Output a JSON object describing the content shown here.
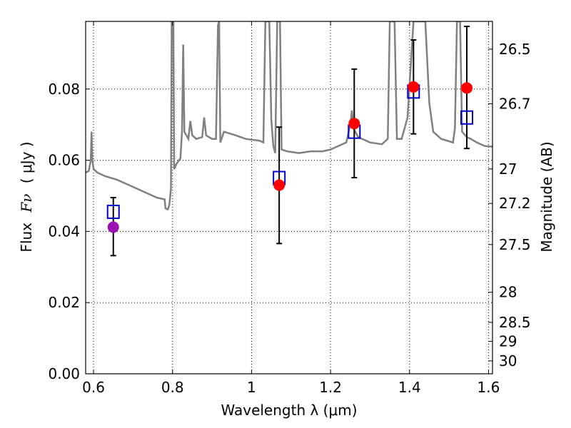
{
  "chart_data": {
    "type": "scatter",
    "xlabel": "Wavelength  λ (μm)",
    "ylabel_left_prefix": "Flux",
    "ylabel_left_symbol": "Fν",
    "ylabel_left_unit": "( μJy )",
    "ylabel_right": "Magnitude (AB)",
    "xlim": [
      0.58,
      1.61
    ],
    "ylim": [
      0.0,
      0.099
    ],
    "grid": true,
    "x_ticks": [
      {
        "value": 0.6,
        "label": "0.6"
      },
      {
        "value": 0.8,
        "label": "0.8"
      },
      {
        "value": 1.0,
        "label": "1"
      },
      {
        "value": 1.2,
        "label": "1.2"
      },
      {
        "value": 1.4,
        "label": "1.4"
      },
      {
        "value": 1.6,
        "label": "1.6"
      }
    ],
    "y_ticks": [
      {
        "value": 0.0,
        "label": "0.00"
      },
      {
        "value": 0.02,
        "label": "0.02"
      },
      {
        "value": 0.04,
        "label": "0.04"
      },
      {
        "value": 0.06,
        "label": "0.06"
      },
      {
        "value": 0.08,
        "label": "0.08"
      }
    ],
    "right_ticks": [
      {
        "mag": 26.5,
        "label": "26.5"
      },
      {
        "mag": 26.7,
        "label": "26.7"
      },
      {
        "mag": 27.0,
        "label": "27"
      },
      {
        "mag": 27.2,
        "label": "27.2"
      },
      {
        "mag": 27.5,
        "label": "27.5"
      },
      {
        "mag": 28.0,
        "label": "28"
      },
      {
        "mag": 28.5,
        "label": "28.5"
      },
      {
        "mag": 29.0,
        "label": "29"
      },
      {
        "mag": 30.0,
        "label": "30"
      }
    ],
    "observed": [
      {
        "x": 0.65,
        "y": 0.0412,
        "yerr_low": 0.0332,
        "yerr_high": 0.0495,
        "color": "#9b0fb3"
      },
      {
        "x": 1.07,
        "y": 0.053,
        "yerr_low": 0.0366,
        "yerr_high": 0.0693,
        "color": "#ff0000"
      },
      {
        "x": 1.26,
        "y": 0.0703,
        "yerr_low": 0.0551,
        "yerr_high": 0.0856,
        "color": "#ff0000"
      },
      {
        "x": 1.41,
        "y": 0.0806,
        "yerr_low": 0.0674,
        "yerr_high": 0.0938,
        "color": "#ff0000"
      },
      {
        "x": 1.545,
        "y": 0.0803,
        "yerr_low": 0.0633,
        "yerr_high": 0.0976,
        "color": "#ff0000"
      }
    ],
    "model_points": [
      {
        "x": 0.65,
        "y": 0.0455
      },
      {
        "x": 1.07,
        "y": 0.055
      },
      {
        "x": 1.26,
        "y": 0.068
      },
      {
        "x": 1.41,
        "y": 0.0793
      },
      {
        "x": 1.545,
        "y": 0.072
      }
    ],
    "spectrum": {
      "color": "#808080",
      "points": [
        [
          0.58,
          0.0565
        ],
        [
          0.588,
          0.057
        ],
        [
          0.593,
          0.06
        ],
        [
          0.595,
          0.068
        ],
        [
          0.597,
          0.06
        ],
        [
          0.6,
          0.0575
        ],
        [
          0.61,
          0.0565
        ],
        [
          0.63,
          0.0555
        ],
        [
          0.66,
          0.0545
        ],
        [
          0.7,
          0.0525
        ],
        [
          0.74,
          0.0505
        ],
        [
          0.76,
          0.0495
        ],
        [
          0.78,
          0.049
        ],
        [
          0.782,
          0.0465
        ],
        [
          0.788,
          0.0462
        ],
        [
          0.792,
          0.0475
        ],
        [
          0.796,
          0.052
        ],
        [
          0.798,
          0.099
        ],
        [
          0.802,
          0.099
        ],
        [
          0.804,
          0.0575
        ],
        [
          0.81,
          0.059
        ],
        [
          0.82,
          0.0605
        ],
        [
          0.824,
          0.068
        ],
        [
          0.827,
          0.0925
        ],
        [
          0.83,
          0.068
        ],
        [
          0.84,
          0.066
        ],
        [
          0.845,
          0.071
        ],
        [
          0.85,
          0.067
        ],
        [
          0.86,
          0.066
        ],
        [
          0.875,
          0.0665
        ],
        [
          0.88,
          0.072
        ],
        [
          0.885,
          0.067
        ],
        [
          0.9,
          0.066
        ],
        [
          0.91,
          0.066
        ],
        [
          0.915,
          0.098
        ],
        [
          0.918,
          0.099
        ],
        [
          0.921,
          0.065
        ],
        [
          0.93,
          0.068
        ],
        [
          0.96,
          0.067
        ],
        [
          0.985,
          0.066
        ],
        [
          1.02,
          0.0655
        ],
        [
          1.03,
          0.065
        ],
        [
          1.035,
          0.099
        ],
        [
          1.045,
          0.099
        ],
        [
          1.05,
          0.0715
        ],
        [
          1.055,
          0.064
        ],
        [
          1.06,
          0.062
        ],
        [
          1.065,
          0.099
        ],
        [
          1.072,
          0.099
        ],
        [
          1.076,
          0.063
        ],
        [
          1.09,
          0.0625
        ],
        [
          1.12,
          0.062
        ],
        [
          1.15,
          0.0625
        ],
        [
          1.18,
          0.0625
        ],
        [
          1.2,
          0.063
        ],
        [
          1.22,
          0.064
        ],
        [
          1.24,
          0.065
        ],
        [
          1.25,
          0.07
        ],
        [
          1.254,
          0.074
        ],
        [
          1.258,
          0.069
        ],
        [
          1.27,
          0.0665
        ],
        [
          1.3,
          0.065
        ],
        [
          1.33,
          0.0645
        ],
        [
          1.345,
          0.066
        ],
        [
          1.35,
          0.099
        ],
        [
          1.362,
          0.099
        ],
        [
          1.368,
          0.066
        ],
        [
          1.38,
          0.066
        ],
        [
          1.395,
          0.072
        ],
        [
          1.41,
          0.099
        ],
        [
          1.44,
          0.099
        ],
        [
          1.45,
          0.076
        ],
        [
          1.46,
          0.068
        ],
        [
          1.48,
          0.066
        ],
        [
          1.51,
          0.065
        ],
        [
          1.515,
          0.069
        ],
        [
          1.52,
          0.099
        ],
        [
          1.528,
          0.099
        ],
        [
          1.533,
          0.068
        ],
        [
          1.545,
          0.0665
        ],
        [
          1.555,
          0.066
        ],
        [
          1.57,
          0.065
        ],
        [
          1.59,
          0.064
        ],
        [
          1.61,
          0.0638
        ]
      ]
    }
  }
}
